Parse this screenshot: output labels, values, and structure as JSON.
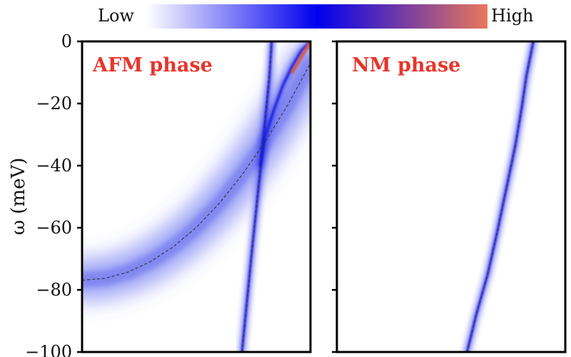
{
  "colorbar": {
    "low_label": "Low",
    "high_label": "High",
    "colors": [
      "#ffffff",
      "#0000ee",
      "#e8785a"
    ]
  },
  "chart_data": [
    {
      "type": "heatmap",
      "title": "AFM phase",
      "ylabel": "ω (meV)",
      "ylim": [
        -100,
        0
      ],
      "yticks": [
        0,
        -20,
        -40,
        -60,
        -80,
        -100
      ],
      "tick_labels": [
        "0",
        "−20",
        "−40",
        "−60",
        "−80",
        "−100"
      ],
      "x_axis_labeled": false,
      "title_color": "#e8352c",
      "dashed_dispersions": [
        {
          "points": [
            [
              0.0,
              -76.9
            ],
            [
              0.1,
              -76.3
            ],
            [
              0.2,
              -74.3
            ],
            [
              0.3,
              -70.9
            ],
            [
              0.4,
              -66.1
            ],
            [
              0.5,
              -59.9
            ],
            [
              0.6,
              -52.2
            ],
            [
              0.7,
              -43.0
            ],
            [
              0.8,
              -32.5
            ],
            [
              0.9,
              -20.5
            ],
            [
              1.0,
              -7.0
            ]
          ]
        },
        {
          "points": [
            [
              0.7,
              -100
            ],
            [
              0.73,
              -78
            ],
            [
              0.76,
              -55
            ],
            [
              0.79,
              -33
            ],
            [
              0.82,
              -10
            ],
            [
              0.83,
              0
            ]
          ]
        }
      ],
      "bright_bands": [
        {
          "points": [
            [
              0.78,
              -40
            ],
            [
              0.8,
              -31
            ],
            [
              0.84,
              -22
            ],
            [
              0.88,
              -14
            ],
            [
              0.92,
              -8
            ],
            [
              0.96,
              -3
            ],
            [
              1.0,
              0
            ]
          ]
        },
        {
          "points": [
            [
              0.7,
              -100
            ],
            [
              0.74,
              -70
            ],
            [
              0.78,
              -42
            ],
            [
              0.82,
              -12
            ],
            [
              0.83,
              0
            ]
          ]
        }
      ],
      "hot_streak": {
        "points": [
          [
            0.92,
            -10
          ],
          [
            0.96,
            -5
          ],
          [
            1.0,
            0
          ]
        ]
      }
    },
    {
      "type": "heatmap",
      "title": "NM phase",
      "ylim": [
        -100,
        0
      ],
      "yticks": [
        0,
        -20,
        -40,
        -60,
        -80,
        -100
      ],
      "x_axis_labeled": false,
      "title_color": "#e8352c",
      "dashed_dispersions": [
        {
          "points": [
            [
              0.57,
              -100
            ],
            [
              0.61,
              -88
            ],
            [
              0.66,
              -75
            ],
            [
              0.7,
              -62
            ],
            [
              0.74,
              -48
            ],
            [
              0.78,
              -34
            ],
            [
              0.81,
              -21
            ],
            [
              0.83,
              -11
            ],
            [
              0.86,
              0
            ]
          ]
        }
      ],
      "bright_bands": [
        {
          "points": [
            [
              0.57,
              -100
            ],
            [
              0.61,
              -88
            ],
            [
              0.66,
              -75
            ],
            [
              0.7,
              -62
            ],
            [
              0.74,
              -48
            ],
            [
              0.78,
              -34
            ],
            [
              0.81,
              -21
            ],
            [
              0.83,
              -11
            ],
            [
              0.86,
              0
            ]
          ]
        }
      ]
    }
  ]
}
